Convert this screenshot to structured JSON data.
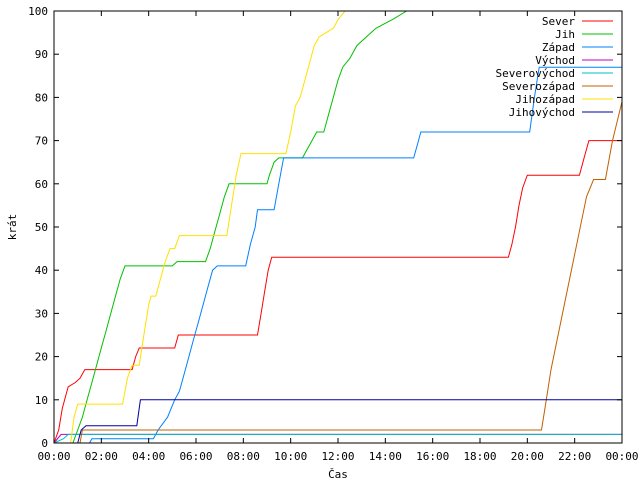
{
  "chart_data": {
    "type": "line",
    "xlabel": "Čas",
    "ylabel": "krát",
    "xlim": [
      0,
      24
    ],
    "ylim": [
      0,
      100
    ],
    "x_ticks": [
      {
        "value": 0,
        "label": "00:00"
      },
      {
        "value": 2,
        "label": "02:00"
      },
      {
        "value": 4,
        "label": "04:00"
      },
      {
        "value": 6,
        "label": "06:00"
      },
      {
        "value": 8,
        "label": "08:00"
      },
      {
        "value": 10,
        "label": "10:00"
      },
      {
        "value": 12,
        "label": "12:00"
      },
      {
        "value": 14,
        "label": "14:00"
      },
      {
        "value": 16,
        "label": "16:00"
      },
      {
        "value": 18,
        "label": "18:00"
      },
      {
        "value": 20,
        "label": "20:00"
      },
      {
        "value": 22,
        "label": "22:00"
      },
      {
        "value": 24,
        "label": "00:00"
      }
    ],
    "y_ticks": [
      0,
      10,
      20,
      30,
      40,
      50,
      60,
      70,
      80,
      90,
      100
    ],
    "grid": false,
    "legend_position": "top-right",
    "series": [
      {
        "name": "Sever",
        "color": "#ff0000",
        "points": [
          [
            0,
            0
          ],
          [
            0.2,
            3
          ],
          [
            0.35,
            8
          ],
          [
            0.5,
            11
          ],
          [
            0.6,
            13
          ],
          [
            0.9,
            14
          ],
          [
            1.1,
            15
          ],
          [
            1.3,
            17
          ],
          [
            3.3,
            17
          ],
          [
            3.45,
            20
          ],
          [
            3.6,
            22
          ],
          [
            5.1,
            22
          ],
          [
            5.25,
            25
          ],
          [
            8.6,
            25
          ],
          [
            8.75,
            30
          ],
          [
            8.9,
            35
          ],
          [
            9.05,
            40
          ],
          [
            9.2,
            43
          ],
          [
            19.2,
            43
          ],
          [
            19.35,
            46
          ],
          [
            19.5,
            50
          ],
          [
            19.65,
            55
          ],
          [
            19.8,
            59
          ],
          [
            20,
            62
          ],
          [
            22.2,
            62
          ],
          [
            22.4,
            66
          ],
          [
            22.6,
            70
          ],
          [
            24,
            70
          ]
        ]
      },
      {
        "name": "Jih",
        "color": "#00c000",
        "points": [
          [
            0,
            0
          ],
          [
            0.8,
            0
          ],
          [
            1,
            3
          ],
          [
            1.2,
            6
          ],
          [
            1.4,
            10
          ],
          [
            1.6,
            14
          ],
          [
            1.8,
            18
          ],
          [
            2,
            22
          ],
          [
            2.2,
            26
          ],
          [
            2.4,
            30
          ],
          [
            2.6,
            34
          ],
          [
            2.8,
            38
          ],
          [
            3,
            41
          ],
          [
            5,
            41
          ],
          [
            5.2,
            42
          ],
          [
            6.4,
            42
          ],
          [
            6.6,
            45
          ],
          [
            6.8,
            49
          ],
          [
            7,
            53
          ],
          [
            7.2,
            57
          ],
          [
            7.4,
            60
          ],
          [
            9,
            60
          ],
          [
            9.1,
            62
          ],
          [
            9.3,
            65
          ],
          [
            9.5,
            66
          ],
          [
            10.5,
            66
          ],
          [
            10.7,
            68
          ],
          [
            10.9,
            70
          ],
          [
            11.1,
            72
          ],
          [
            11.4,
            72
          ],
          [
            11.6,
            76
          ],
          [
            11.8,
            80
          ],
          [
            12,
            84
          ],
          [
            12.2,
            87
          ],
          [
            12.5,
            89
          ],
          [
            12.8,
            92
          ],
          [
            13.2,
            94
          ],
          [
            13.6,
            96
          ],
          [
            14.3,
            98
          ],
          [
            14.9,
            100
          ]
        ]
      },
      {
        "name": "Západ",
        "color": "#0080ff",
        "points": [
          [
            0,
            0
          ],
          [
            1.5,
            0
          ],
          [
            1.6,
            1
          ],
          [
            4.2,
            1
          ],
          [
            4.4,
            3
          ],
          [
            4.8,
            6
          ],
          [
            5.1,
            10
          ],
          [
            5.3,
            12
          ],
          [
            5.5,
            16
          ],
          [
            5.7,
            20
          ],
          [
            5.9,
            24
          ],
          [
            6.1,
            28
          ],
          [
            6.3,
            32
          ],
          [
            6.5,
            36
          ],
          [
            6.7,
            40
          ],
          [
            6.9,
            41
          ],
          [
            8.1,
            41
          ],
          [
            8.3,
            46
          ],
          [
            8.5,
            50
          ],
          [
            8.6,
            54
          ],
          [
            9.3,
            54
          ],
          [
            9.5,
            60
          ],
          [
            9.7,
            66
          ],
          [
            15.2,
            66
          ],
          [
            15.4,
            70
          ],
          [
            15.5,
            72
          ],
          [
            20.1,
            72
          ],
          [
            20.3,
            80
          ],
          [
            20.5,
            87
          ],
          [
            24,
            87
          ]
        ]
      },
      {
        "name": "Východ",
        "color": "#c000c0",
        "points": [
          [
            0,
            0
          ],
          [
            0.3,
            2
          ],
          [
            24,
            2
          ]
        ]
      },
      {
        "name": "Severovýchod",
        "color": "#00c0c0",
        "points": [
          [
            0,
            0
          ],
          [
            0.4,
            1
          ],
          [
            0.6,
            2
          ],
          [
            24,
            2
          ]
        ]
      },
      {
        "name": "Severozápad",
        "color": "#c06000",
        "points": [
          [
            0,
            0
          ],
          [
            1.1,
            0
          ],
          [
            1.2,
            3
          ],
          [
            20.6,
            3
          ],
          [
            20.8,
            10
          ],
          [
            21,
            17
          ],
          [
            21.3,
            25
          ],
          [
            21.6,
            33
          ],
          [
            21.9,
            41
          ],
          [
            22.2,
            49
          ],
          [
            22.5,
            57
          ],
          [
            22.8,
            61
          ],
          [
            23.3,
            61
          ],
          [
            23.6,
            70
          ],
          [
            24,
            79
          ]
        ]
      },
      {
        "name": "Jihozápad",
        "color": "#ffe000",
        "points": [
          [
            0,
            0
          ],
          [
            0.7,
            0
          ],
          [
            0.85,
            6
          ],
          [
            1,
            9
          ],
          [
            2.9,
            9
          ],
          [
            3.1,
            15
          ],
          [
            3.3,
            18
          ],
          [
            3.6,
            18
          ],
          [
            3.8,
            25
          ],
          [
            4,
            32
          ],
          [
            4.1,
            34
          ],
          [
            4.3,
            34
          ],
          [
            4.5,
            38
          ],
          [
            4.7,
            42
          ],
          [
            4.9,
            45
          ],
          [
            5.1,
            45
          ],
          [
            5.3,
            48
          ],
          [
            7.3,
            48
          ],
          [
            7.5,
            55
          ],
          [
            7.7,
            62
          ],
          [
            7.9,
            67
          ],
          [
            9.8,
            67
          ],
          [
            10,
            72
          ],
          [
            10.2,
            78
          ],
          [
            10.4,
            80
          ],
          [
            10.6,
            84
          ],
          [
            10.8,
            88
          ],
          [
            11,
            92
          ],
          [
            11.2,
            94
          ],
          [
            11.5,
            95
          ],
          [
            11.8,
            96
          ],
          [
            12,
            98
          ],
          [
            12.3,
            100
          ]
        ]
      },
      {
        "name": "Jihovýchod",
        "color": "#0000a0",
        "points": [
          [
            0,
            0
          ],
          [
            1,
            0
          ],
          [
            1.15,
            3
          ],
          [
            1.35,
            4
          ],
          [
            3.5,
            4
          ],
          [
            3.65,
            10
          ],
          [
            24,
            10
          ]
        ]
      }
    ]
  }
}
